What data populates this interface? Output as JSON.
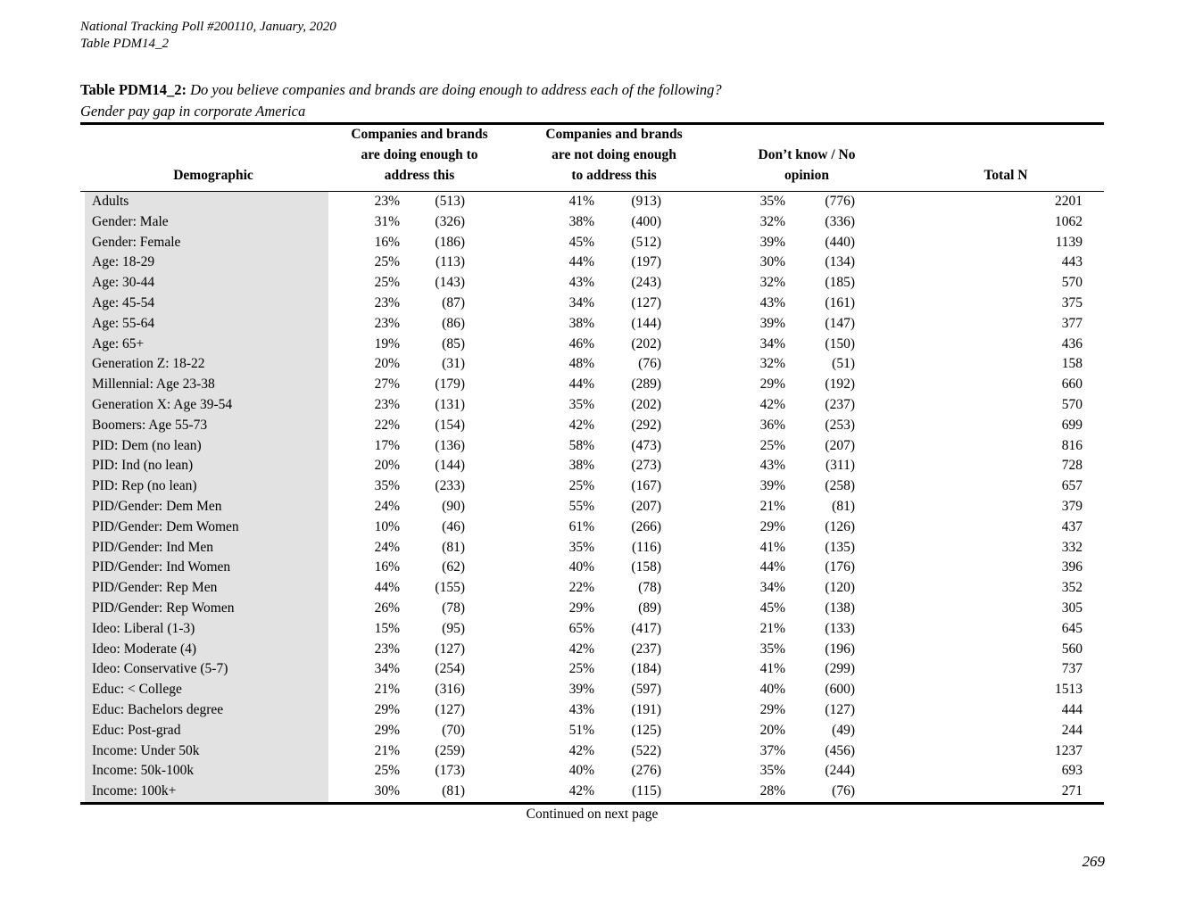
{
  "page": {
    "header_line1": "National Tracking Poll #200110, January, 2020",
    "header_line2": "Table PDM14_2",
    "title_label": "Table PDM14_2:",
    "title_question": "Do you believe companies and brands are doing enough to address each of the following?",
    "title_subject": "Gender pay gap in corporate America",
    "footer_note": "Continued on next page",
    "page_number": "269"
  },
  "colors": {
    "row_shade": "#e2e2e2",
    "rule": "#000000",
    "text": "#000000"
  },
  "table": {
    "columns": {
      "demographic": "Demographic",
      "group1": [
        "Companies and brands",
        "are doing enough to",
        "address this"
      ],
      "group2": [
        "Companies and brands",
        "are not doing enough",
        "to address this"
      ],
      "group3": [
        "Don’t know / No",
        "opinion"
      ],
      "total": "Total N"
    },
    "rows": [
      {
        "demographic": "Adults",
        "pct1": "23%",
        "n1": "(513)",
        "pct2": "41%",
        "n2": "(913)",
        "pct3": "35%",
        "n3": "(776)",
        "total": "2201"
      },
      {
        "demographic": "Gender: Male",
        "pct1": "31%",
        "n1": "(326)",
        "pct2": "38%",
        "n2": "(400)",
        "pct3": "32%",
        "n3": "(336)",
        "total": "1062"
      },
      {
        "demographic": "Gender: Female",
        "pct1": "16%",
        "n1": "(186)",
        "pct2": "45%",
        "n2": "(512)",
        "pct3": "39%",
        "n3": "(440)",
        "total": "1139"
      },
      {
        "demographic": "Age: 18-29",
        "pct1": "25%",
        "n1": "(113)",
        "pct2": "44%",
        "n2": "(197)",
        "pct3": "30%",
        "n3": "(134)",
        "total": "443"
      },
      {
        "demographic": "Age: 30-44",
        "pct1": "25%",
        "n1": "(143)",
        "pct2": "43%",
        "n2": "(243)",
        "pct3": "32%",
        "n3": "(185)",
        "total": "570"
      },
      {
        "demographic": "Age: 45-54",
        "pct1": "23%",
        "n1": "(87)",
        "pct2": "34%",
        "n2": "(127)",
        "pct3": "43%",
        "n3": "(161)",
        "total": "375"
      },
      {
        "demographic": "Age: 55-64",
        "pct1": "23%",
        "n1": "(86)",
        "pct2": "38%",
        "n2": "(144)",
        "pct3": "39%",
        "n3": "(147)",
        "total": "377"
      },
      {
        "demographic": "Age: 65+",
        "pct1": "19%",
        "n1": "(85)",
        "pct2": "46%",
        "n2": "(202)",
        "pct3": "34%",
        "n3": "(150)",
        "total": "436"
      },
      {
        "demographic": "Generation Z: 18-22",
        "pct1": "20%",
        "n1": "(31)",
        "pct2": "48%",
        "n2": "(76)",
        "pct3": "32%",
        "n3": "(51)",
        "total": "158"
      },
      {
        "demographic": "Millennial: Age 23-38",
        "pct1": "27%",
        "n1": "(179)",
        "pct2": "44%",
        "n2": "(289)",
        "pct3": "29%",
        "n3": "(192)",
        "total": "660"
      },
      {
        "demographic": "Generation X: Age 39-54",
        "pct1": "23%",
        "n1": "(131)",
        "pct2": "35%",
        "n2": "(202)",
        "pct3": "42%",
        "n3": "(237)",
        "total": "570"
      },
      {
        "demographic": "Boomers: Age 55-73",
        "pct1": "22%",
        "n1": "(154)",
        "pct2": "42%",
        "n2": "(292)",
        "pct3": "36%",
        "n3": "(253)",
        "total": "699"
      },
      {
        "demographic": "PID: Dem (no lean)",
        "pct1": "17%",
        "n1": "(136)",
        "pct2": "58%",
        "n2": "(473)",
        "pct3": "25%",
        "n3": "(207)",
        "total": "816"
      },
      {
        "demographic": "PID: Ind (no lean)",
        "pct1": "20%",
        "n1": "(144)",
        "pct2": "38%",
        "n2": "(273)",
        "pct3": "43%",
        "n3": "(311)",
        "total": "728"
      },
      {
        "demographic": "PID: Rep (no lean)",
        "pct1": "35%",
        "n1": "(233)",
        "pct2": "25%",
        "n2": "(167)",
        "pct3": "39%",
        "n3": "(258)",
        "total": "657"
      },
      {
        "demographic": "PID/Gender: Dem Men",
        "pct1": "24%",
        "n1": "(90)",
        "pct2": "55%",
        "n2": "(207)",
        "pct3": "21%",
        "n3": "(81)",
        "total": "379"
      },
      {
        "demographic": "PID/Gender: Dem Women",
        "pct1": "10%",
        "n1": "(46)",
        "pct2": "61%",
        "n2": "(266)",
        "pct3": "29%",
        "n3": "(126)",
        "total": "437"
      },
      {
        "demographic": "PID/Gender: Ind Men",
        "pct1": "24%",
        "n1": "(81)",
        "pct2": "35%",
        "n2": "(116)",
        "pct3": "41%",
        "n3": "(135)",
        "total": "332"
      },
      {
        "demographic": "PID/Gender: Ind Women",
        "pct1": "16%",
        "n1": "(62)",
        "pct2": "40%",
        "n2": "(158)",
        "pct3": "44%",
        "n3": "(176)",
        "total": "396"
      },
      {
        "demographic": "PID/Gender: Rep Men",
        "pct1": "44%",
        "n1": "(155)",
        "pct2": "22%",
        "n2": "(78)",
        "pct3": "34%",
        "n3": "(120)",
        "total": "352"
      },
      {
        "demographic": "PID/Gender: Rep Women",
        "pct1": "26%",
        "n1": "(78)",
        "pct2": "29%",
        "n2": "(89)",
        "pct3": "45%",
        "n3": "(138)",
        "total": "305"
      },
      {
        "demographic": "Ideo: Liberal (1-3)",
        "pct1": "15%",
        "n1": "(95)",
        "pct2": "65%",
        "n2": "(417)",
        "pct3": "21%",
        "n3": "(133)",
        "total": "645"
      },
      {
        "demographic": "Ideo: Moderate (4)",
        "pct1": "23%",
        "n1": "(127)",
        "pct2": "42%",
        "n2": "(237)",
        "pct3": "35%",
        "n3": "(196)",
        "total": "560"
      },
      {
        "demographic": "Ideo: Conservative (5-7)",
        "pct1": "34%",
        "n1": "(254)",
        "pct2": "25%",
        "n2": "(184)",
        "pct3": "41%",
        "n3": "(299)",
        "total": "737"
      },
      {
        "demographic": "Educ: < College",
        "pct1": "21%",
        "n1": "(316)",
        "pct2": "39%",
        "n2": "(597)",
        "pct3": "40%",
        "n3": "(600)",
        "total": "1513"
      },
      {
        "demographic": "Educ: Bachelors degree",
        "pct1": "29%",
        "n1": "(127)",
        "pct2": "43%",
        "n2": "(191)",
        "pct3": "29%",
        "n3": "(127)",
        "total": "444"
      },
      {
        "demographic": "Educ: Post-grad",
        "pct1": "29%",
        "n1": "(70)",
        "pct2": "51%",
        "n2": "(125)",
        "pct3": "20%",
        "n3": "(49)",
        "total": "244"
      },
      {
        "demographic": "Income: Under 50k",
        "pct1": "21%",
        "n1": "(259)",
        "pct2": "42%",
        "n2": "(522)",
        "pct3": "37%",
        "n3": "(456)",
        "total": "1237"
      },
      {
        "demographic": "Income: 50k-100k",
        "pct1": "25%",
        "n1": "(173)",
        "pct2": "40%",
        "n2": "(276)",
        "pct3": "35%",
        "n3": "(244)",
        "total": "693"
      },
      {
        "demographic": "Income: 100k+",
        "pct1": "30%",
        "n1": "(81)",
        "pct2": "42%",
        "n2": "(115)",
        "pct3": "28%",
        "n3": "(76)",
        "total": "271"
      }
    ]
  }
}
